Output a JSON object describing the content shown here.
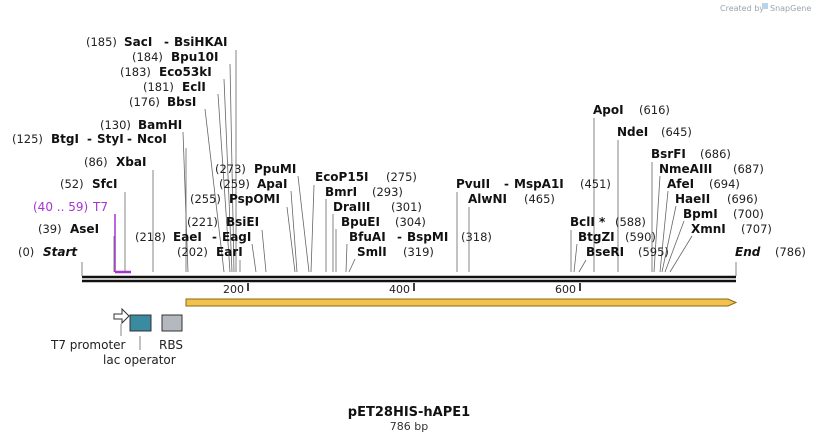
{
  "credit": {
    "text": "Created by",
    "brand": "SnapGene"
  },
  "plasmid": {
    "name": "pET28HIS-hAPE1",
    "length": 786,
    "size_label": "786 bp"
  },
  "ends": {
    "start": {
      "pos_label": "(0)",
      "name": "Start"
    },
    "end": {
      "pos_label": "(786)",
      "name": "End"
    }
  },
  "sites_left": [
    {
      "pos_label": "(185)",
      "names": [
        "SacI",
        "BsiHKAI"
      ],
      "bp": 185
    },
    {
      "pos_label": "(184)",
      "names": [
        "Bpu10I"
      ],
      "bp": 184
    },
    {
      "pos_label": "(183)",
      "names": [
        "Eco53kI"
      ],
      "bp": 183
    },
    {
      "pos_label": "(181)",
      "names": [
        "EclI"
      ],
      "bp": 181
    },
    {
      "pos_label": "(176)",
      "names": [
        "BbsI"
      ],
      "bp": 176
    },
    {
      "pos_label": "(130)",
      "names": [
        "BamHI"
      ],
      "bp": 130
    },
    {
      "pos_label": "(125)",
      "names": [
        "BtgI",
        "StyI",
        "NcoI"
      ],
      "bp": 125
    },
    {
      "pos_label": "(86)",
      "names": [
        "XbaI"
      ],
      "bp": 86
    },
    {
      "pos_label": "(52)",
      "names": [
        "SfcI"
      ],
      "bp": 52
    },
    {
      "pos_label": "(39)",
      "names": [
        "AseI"
      ],
      "bp": 39
    }
  ],
  "feature_label": {
    "range": "(40 .. 59)",
    "name": "T7",
    "start_bp": 40,
    "end_bp": 59,
    "color": "#a633d6"
  },
  "sites_mid": [
    {
      "pos_label": "(218)",
      "names": [
        "EaeI",
        "EagI"
      ],
      "bp": 218
    },
    {
      "pos_label": "(202)",
      "names": [
        "EarI"
      ],
      "bp": 202
    },
    {
      "pos_label": "(221)",
      "names": [
        "BsiEI"
      ],
      "bp": 221
    },
    {
      "pos_label": "(255)",
      "names": [
        "PspOMI"
      ],
      "bp": 255
    },
    {
      "pos_label": "(259)",
      "names": [
        "ApaI"
      ],
      "bp": 259
    },
    {
      "pos_label": "(273)",
      "names": [
        "PpuMI"
      ],
      "bp": 273
    },
    {
      "pos_label": "(275)",
      "names": [
        "EcoP15I"
      ],
      "bp": 275
    },
    {
      "pos_label": "(293)",
      "names": [
        "BmrI"
      ],
      "bp": 293
    },
    {
      "pos_label": "(301)",
      "names": [
        "DraIII"
      ],
      "bp": 301
    },
    {
      "pos_label": "(304)",
      "names": [
        "BpuEI"
      ],
      "bp": 304
    },
    {
      "pos_label": "(318)",
      "names": [
        "BfuAI",
        "BspMI"
      ],
      "bp": 318
    },
    {
      "pos_label": "(319)",
      "names": [
        "SmlI"
      ],
      "bp": 319
    }
  ],
  "sites_right": [
    {
      "pos_label": "(616)",
      "names": [
        "ApoI"
      ],
      "bp": 616
    },
    {
      "pos_label": "(645)",
      "names": [
        "NdeI"
      ],
      "bp": 645
    },
    {
      "pos_label": "(686)",
      "names": [
        "BsrFI"
      ],
      "bp": 686
    },
    {
      "pos_label": "(687)",
      "names": [
        "NmeAIII"
      ],
      "bp": 687
    },
    {
      "pos_label": "(694)",
      "names": [
        "AfeI"
      ],
      "bp": 694
    },
    {
      "pos_label": "(696)",
      "names": [
        "HaeII"
      ],
      "bp": 696
    },
    {
      "pos_label": "(700)",
      "names": [
        "BpmI"
      ],
      "bp": 700
    },
    {
      "pos_label": "(707)",
      "names": [
        "XmnI"
      ],
      "bp": 707
    },
    {
      "pos_label": "(451)",
      "names": [
        "PvuII",
        "MspA1I"
      ],
      "bp": 451
    },
    {
      "pos_label": "(465)",
      "names": [
        "AlwNI"
      ],
      "bp": 465
    },
    {
      "pos_label": "(588)",
      "names": [
        "BclI *"
      ],
      "bp": 588
    },
    {
      "pos_label": "(590)",
      "names": [
        "BtgZI"
      ],
      "bp": 590
    },
    {
      "pos_label": "(595)",
      "names": [
        "BseRI"
      ],
      "bp": 595
    }
  ],
  "ruler": {
    "ticks": [
      200,
      400,
      600
    ]
  },
  "orf": {
    "start_bp": 125,
    "end_bp": 786,
    "fill": "#f2c14e",
    "stroke": "#8a6a14"
  },
  "legend": {
    "t7_promoter": {
      "label": "T7 promoter",
      "color": "#ffffff"
    },
    "lac_operator": {
      "label": "lac operator",
      "color": "#3a8aa0"
    },
    "rbs": {
      "label": "RBS",
      "color": "#b4b8bf"
    }
  }
}
